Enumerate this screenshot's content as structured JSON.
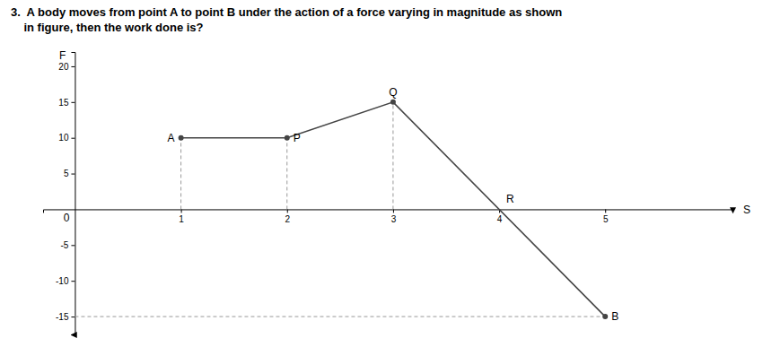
{
  "chart_data": {
    "type": "line",
    "title": "3.  A body moves from point A to point B under the action of a force varying in magnitude as shown\n    in figure, then the work done is?",
    "x_label": "S",
    "y_label": "F",
    "x": [
      1,
      2,
      3,
      5
    ],
    "series": [
      {
        "values": [
          10,
          10,
          15,
          -15
        ],
        "color": "#444444",
        "marker": "circle"
      }
    ],
    "xlim": [
      -0.3,
      6.2
    ],
    "ylim": [
      -17.5,
      22
    ],
    "xticks": [
      1,
      2,
      3,
      4,
      5
    ],
    "yticks": [
      -15,
      -10,
      -5,
      5,
      10,
      15,
      20
    ],
    "annotations": [
      {
        "text": "A",
        "x": 1.0,
        "y": 10
      },
      {
        "text": "P",
        "x": 2.0,
        "y": 10
      },
      {
        "text": "Q",
        "x": 3.0,
        "y": 15
      },
      {
        "text": "R",
        "x": 4.0,
        "y": 1.5
      },
      {
        "text": "B",
        "x": 5.0,
        "y": -15
      },
      {
        "text": "0",
        "x": 0,
        "y": 0
      }
    ],
    "drop_lines": {
      "x": [
        1,
        2,
        3
      ],
      "color": "#999999",
      "line_style": "dashed"
    },
    "hlines": [
      {
        "y": -15,
        "xmin": 0,
        "xmax": 5,
        "color": "#999999",
        "line_style": "dashed"
      }
    ]
  }
}
